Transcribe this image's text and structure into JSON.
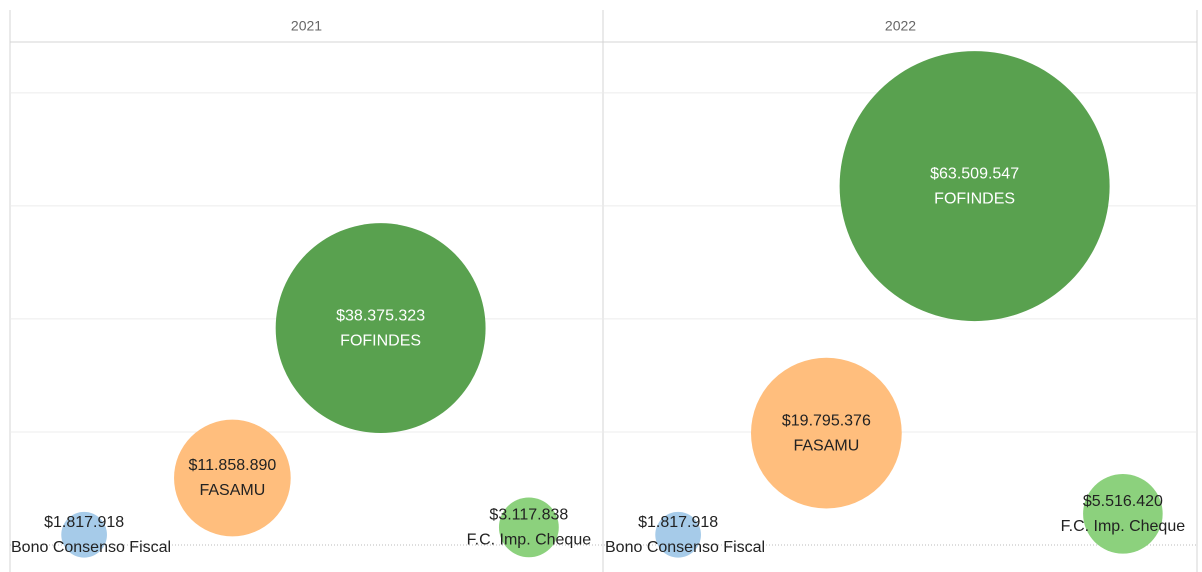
{
  "chart_data": {
    "type": "bubble",
    "categories": [
      "Bono Consenso Fiscal",
      "FASAMU",
      "FOFINDES",
      "F.C. Imp. Cheque"
    ],
    "colors": [
      "#a6cbe9",
      "#ffbe7d",
      "#59a14f",
      "#8cd17d"
    ],
    "series": [
      {
        "name": "2021",
        "values": [
          1817918,
          11858890,
          38375323,
          3117838
        ],
        "value_labels": [
          "$1.817.918",
          "$11.858.890",
          "$38.375.323",
          "$3.117.838"
        ]
      },
      {
        "name": "2022",
        "values": [
          1817918,
          19795376,
          63509547,
          5516420
        ],
        "value_labels": [
          "$1.817.918",
          "$19.795.376",
          "$63.509.547",
          "$5.516.420"
        ]
      }
    ],
    "ylim": [
      0,
      89000000
    ],
    "yticks": [
      0,
      20000000,
      40000000,
      60000000,
      80000000
    ],
    "grid": true
  }
}
